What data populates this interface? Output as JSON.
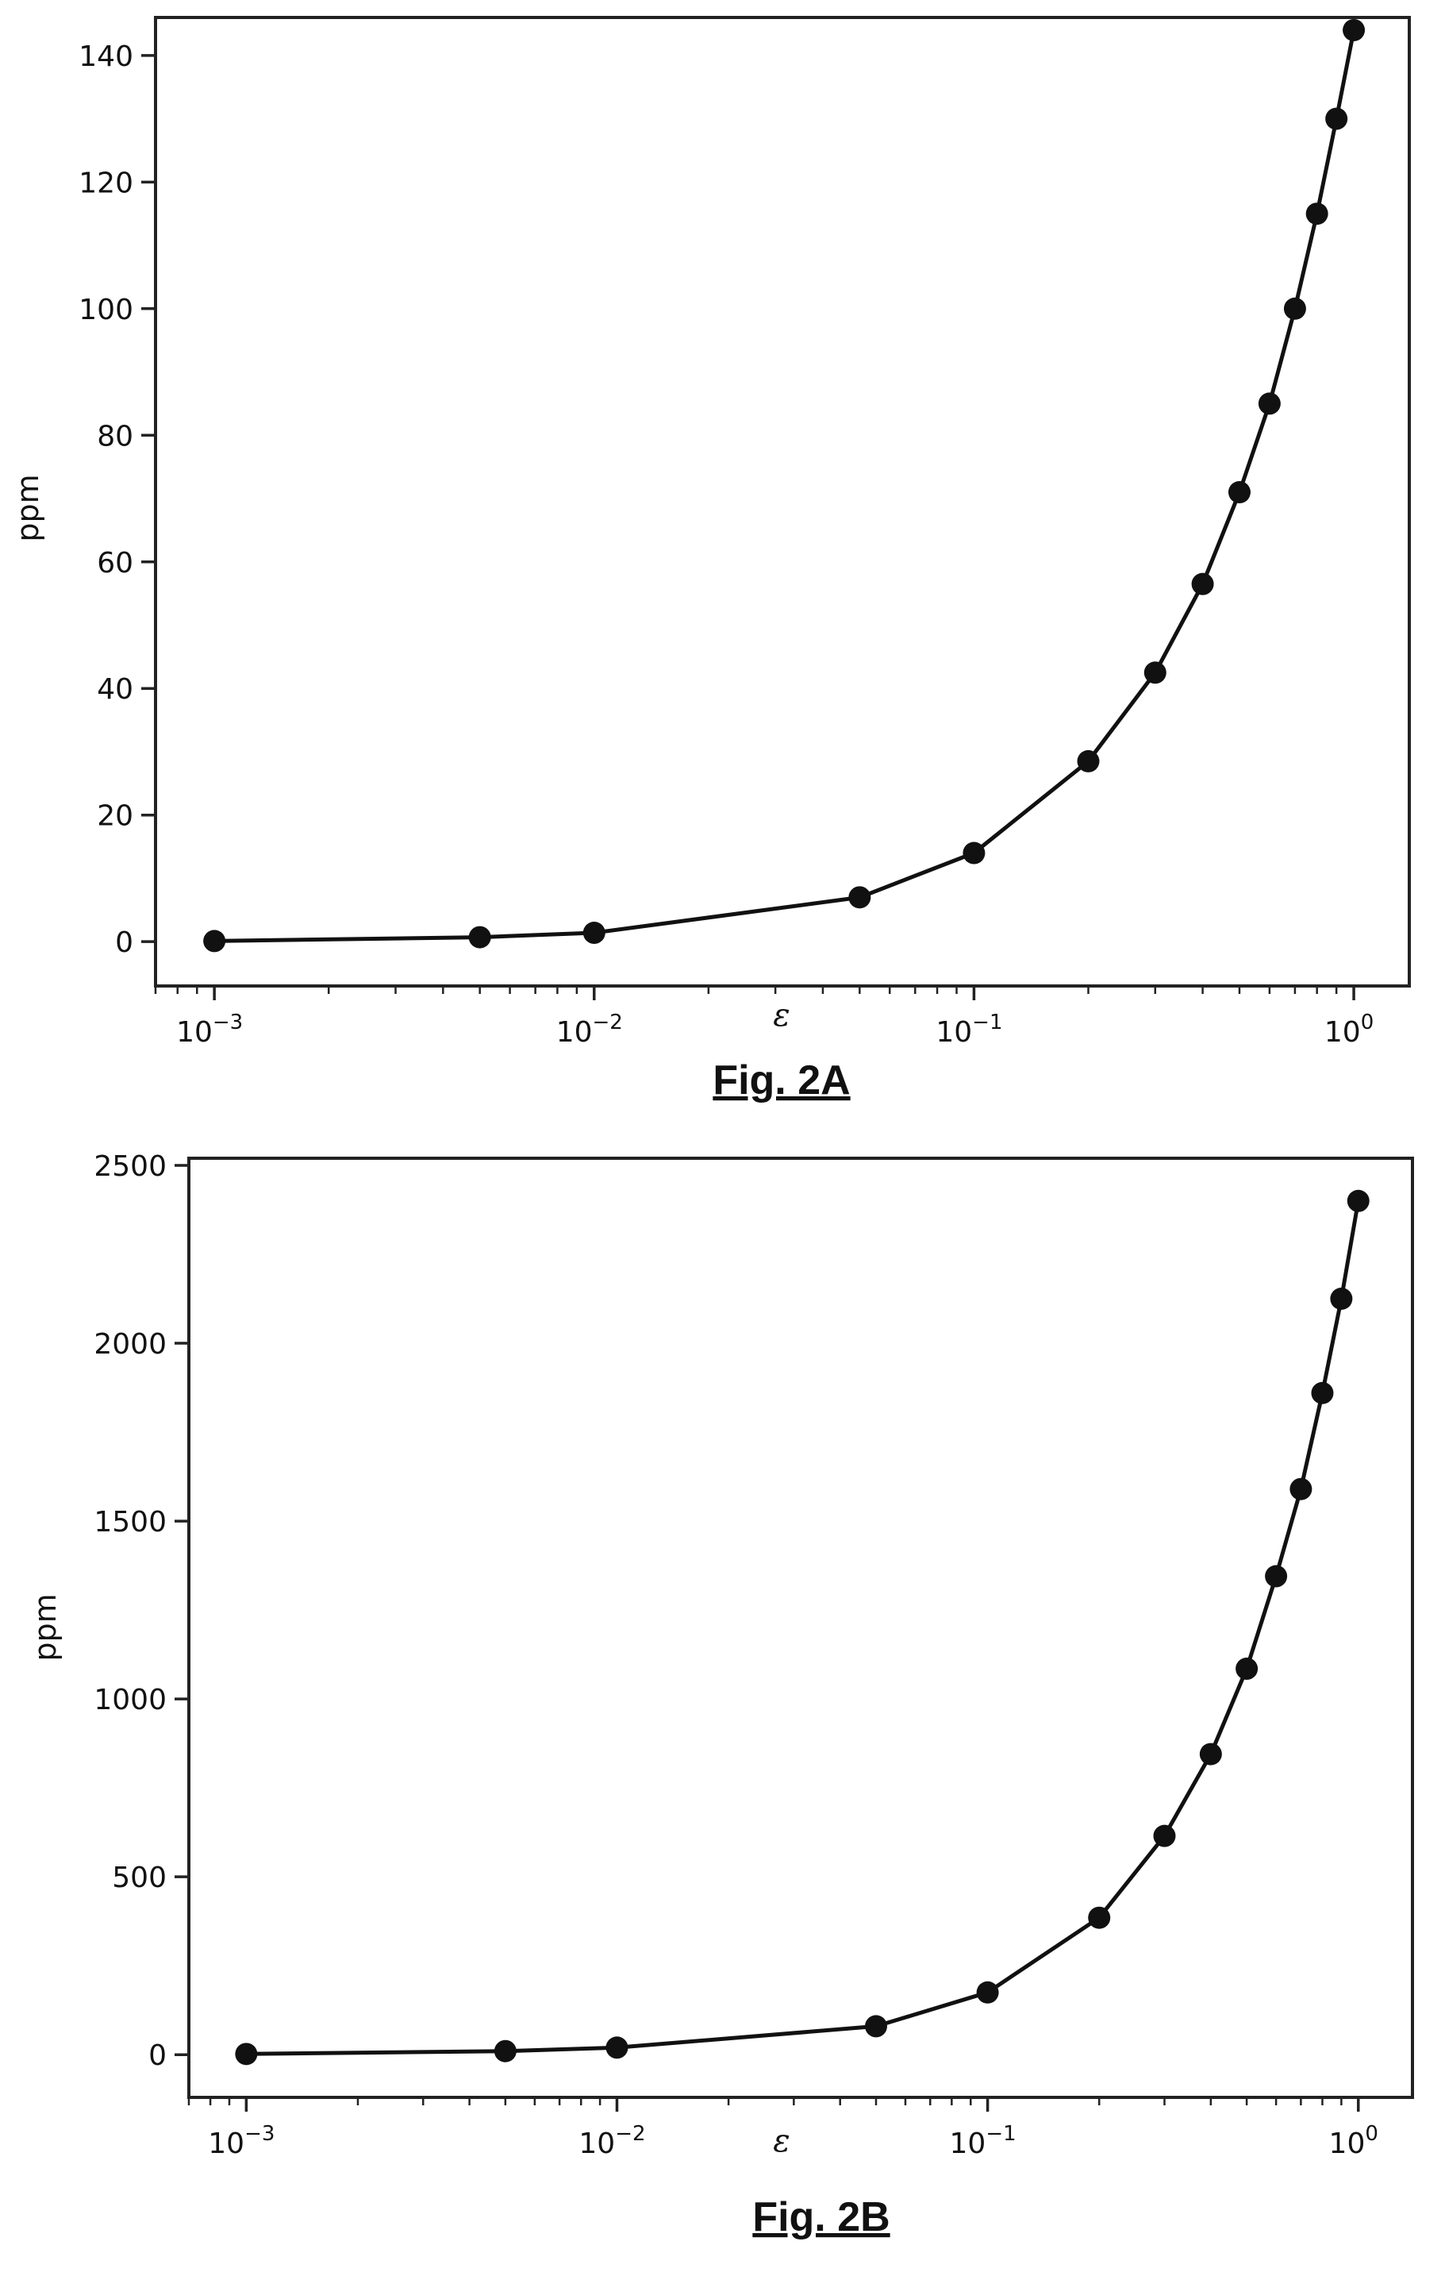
{
  "chart_data": [
    {
      "type": "line",
      "caption": "Fig. 2A",
      "xlabel": "ε",
      "ylabel": "ppm",
      "xscale": "log",
      "xlim": [
        0.0007,
        1.4
      ],
      "ylim": [
        -7,
        146
      ],
      "xticks": [
        {
          "value": 0.001,
          "base": "10",
          "exp": "−3"
        },
        {
          "value": 0.01,
          "base": "10",
          "exp": "−2"
        },
        {
          "value": 0.1,
          "base": "10",
          "exp": "−1"
        },
        {
          "value": 1,
          "base": "10",
          "exp": "0"
        }
      ],
      "yticks": [
        0,
        20,
        40,
        60,
        80,
        100,
        120,
        140
      ],
      "grid": false,
      "series": [
        {
          "x": [
            0.001,
            0.005,
            0.01,
            0.05,
            0.1,
            0.2,
            0.3,
            0.4,
            0.5,
            0.6,
            0.7,
            0.8,
            0.9,
            1.0
          ],
          "y": [
            0.1,
            0.7,
            1.4,
            7,
            14,
            28.5,
            42.5,
            56.5,
            71,
            85,
            100,
            115,
            130,
            144
          ]
        }
      ]
    },
    {
      "type": "line",
      "caption": "Fig. 2B",
      "xlabel": "ε",
      "ylabel": "ppm",
      "xscale": "log",
      "xlim": [
        0.0007,
        1.4
      ],
      "ylim": [
        -120,
        2520
      ],
      "xticks": [
        {
          "value": 0.001,
          "base": "10",
          "exp": "−3"
        },
        {
          "value": 0.01,
          "base": "10",
          "exp": "−2"
        },
        {
          "value": 0.1,
          "base": "10",
          "exp": "−1"
        },
        {
          "value": 1,
          "base": "10",
          "exp": "0"
        }
      ],
      "yticks": [
        0,
        500,
        1000,
        1500,
        2000,
        2500
      ],
      "grid": false,
      "series": [
        {
          "x": [
            0.001,
            0.005,
            0.01,
            0.05,
            0.1,
            0.2,
            0.3,
            0.4,
            0.5,
            0.6,
            0.7,
            0.8,
            0.9,
            1.0
          ],
          "y": [
            2,
            10,
            20,
            80,
            175,
            385,
            615,
            845,
            1085,
            1345,
            1590,
            1860,
            2125,
            2400
          ]
        }
      ]
    }
  ]
}
